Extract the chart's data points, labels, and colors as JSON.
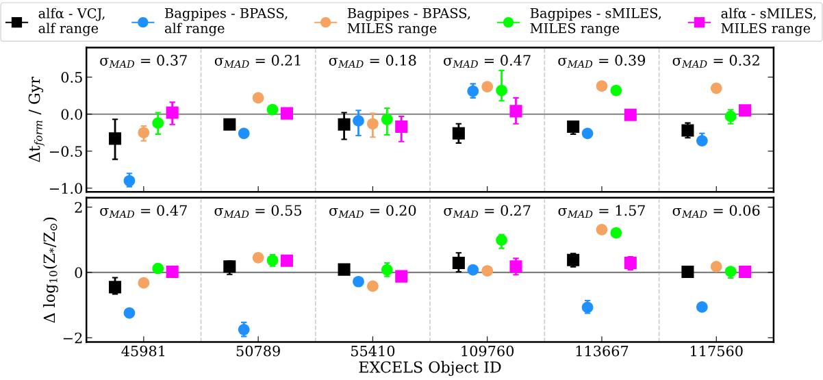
{
  "chart_data": [
    {
      "type": "scatter",
      "ylabel": "Δt$_{form}$ / Gyr",
      "categories": [
        "45981",
        "50789",
        "55410",
        "109760",
        "113667",
        "117560"
      ],
      "ylim": [
        -1.05,
        0.9
      ],
      "yticks": [
        {
          "value": -1.0,
          "label": "−1.0"
        },
        {
          "value": -0.5,
          "label": "−0.5"
        },
        {
          "value": 0.0,
          "label": "0.0"
        },
        {
          "value": 0.5,
          "label": "0.5"
        }
      ],
      "tick_labels": "y",
      "legend": "top",
      "grid": false,
      "annotations": [
        "σ$_{MAD}$ = 0.37",
        "σ$_{MAD}$ = 0.21",
        "σ$_{MAD}$ = 0.18",
        "σ$_{MAD}$ = 0.47",
        "σ$_{MAD}$ = 0.39",
        "σ$_{MAD}$ = 0.32"
      ],
      "ref_lines": [
        {
          "axis": "y",
          "value": 0,
          "color": "#808080"
        }
      ],
      "series": [
        {
          "name": "alfα - VCJ,\nalf range",
          "color": "#000000",
          "marker": "square",
          "values": [
            -0.33,
            -0.14,
            -0.14,
            -0.26,
            -0.17,
            -0.22
          ],
          "errors": [
            [
              -0.61,
              -0.07
            ],
            null,
            [
              -0.34,
              0.02
            ],
            [
              -0.39,
              -0.13
            ],
            [
              -0.27,
              -0.11
            ],
            [
              -0.32,
              -0.12
            ]
          ]
        },
        {
          "name": "Bagpipes - BPASS,\nalf range",
          "color": "#1e90ff",
          "marker": "circle",
          "values": [
            -0.9,
            -0.26,
            -0.09,
            0.31,
            -0.26,
            -0.36
          ],
          "errors": [
            [
              -0.98,
              -0.8
            ],
            null,
            [
              -0.29,
              0.05
            ],
            [
              0.22,
              0.41
            ],
            null,
            [
              -0.36,
              -0.26
            ]
          ]
        },
        {
          "name": "Bagpipes - BPASS,\nMILES range",
          "color": "#f4a460",
          "marker": "circle",
          "values": [
            -0.25,
            0.22,
            -0.13,
            0.37,
            0.38,
            0.35
          ],
          "errors": [
            [
              -0.36,
              -0.16
            ],
            null,
            [
              -0.31,
              0.01
            ],
            null,
            null,
            null
          ]
        },
        {
          "name": "Bagpipes - sMILES,\nMILES range",
          "color": "#00ff00",
          "marker": "circle",
          "values": [
            -0.12,
            0.06,
            -0.07,
            0.32,
            0.32,
            -0.03
          ],
          "errors": [
            [
              -0.27,
              0.02
            ],
            null,
            [
              -0.28,
              0.08
            ],
            [
              0.18,
              0.59
            ],
            null,
            [
              -0.13,
              0.06
            ]
          ]
        },
        {
          "name": "alfα - sMILES,\nMILES range",
          "color": "#ff00ff",
          "marker": "square",
          "values": [
            0.02,
            0.01,
            -0.17,
            0.04,
            -0.01,
            0.05
          ],
          "errors": [
            [
              -0.14,
              0.16
            ],
            null,
            [
              -0.37,
              -0.03
            ],
            [
              -0.13,
              0.22
            ],
            null,
            null
          ]
        }
      ]
    },
    {
      "type": "scatter",
      "ylabel": "Δ log$_{10}$(Z$_{*}$/Z$_{⊙}$)",
      "xlabel": "EXCELS Object ID",
      "categories": [
        "45981",
        "50789",
        "55410",
        "109760",
        "113667",
        "117560"
      ],
      "ylim": [
        -2.13,
        2.29
      ],
      "yticks": [
        {
          "value": -2,
          "label": "−2"
        },
        0,
        2
      ],
      "grid": false,
      "annotations": [
        "σ$_{MAD}$ = 0.47",
        "σ$_{MAD}$ = 0.55",
        "σ$_{MAD}$ = 0.20",
        "σ$_{MAD}$ = 0.27",
        "σ$_{MAD}$ = 1.57",
        "σ$_{MAD}$ = 0.06"
      ],
      "ref_lines": [
        {
          "axis": "y",
          "value": 0,
          "color": "#808080"
        }
      ],
      "series": [
        {
          "color": "#000000",
          "marker": "square",
          "values": [
            -0.45,
            0.18,
            0.09,
            0.29,
            0.38,
            0.02
          ],
          "errors": [
            [
              -0.66,
              -0.16
            ],
            [
              -0.06,
              0.35
            ],
            null,
            [
              0.02,
              0.6
            ],
            [
              0.17,
              0.58
            ],
            null
          ]
        },
        {
          "color": "#1e90ff",
          "marker": "circle",
          "values": [
            -1.24,
            -1.75,
            -0.28,
            0.08,
            -1.07,
            -1.06
          ],
          "errors": [
            null,
            [
              -1.96,
              -1.53
            ],
            null,
            null,
            [
              -1.25,
              -0.86
            ],
            null
          ]
        },
        {
          "color": "#f4a460",
          "marker": "circle",
          "values": [
            -0.32,
            0.45,
            -0.42,
            0.05,
            1.31,
            0.18
          ],
          "errors": [
            null,
            null,
            null,
            null,
            null,
            null
          ]
        },
        {
          "color": "#00ff00",
          "marker": "circle",
          "values": [
            0.12,
            0.37,
            0.08,
            0.99,
            1.21,
            0.03
          ],
          "errors": [
            null,
            [
              0.19,
              0.54
            ],
            [
              -0.12,
              0.29
            ],
            [
              0.74,
              1.16
            ],
            null,
            [
              -0.17,
              0.03
            ]
          ]
        },
        {
          "color": "#ff00ff",
          "marker": "square",
          "values": [
            0.02,
            0.36,
            -0.12,
            0.18,
            0.29,
            0.02
          ],
          "errors": [
            null,
            null,
            null,
            [
              -0.07,
              0.43
            ],
            [
              0.08,
              0.48
            ],
            null
          ]
        }
      ]
    }
  ]
}
